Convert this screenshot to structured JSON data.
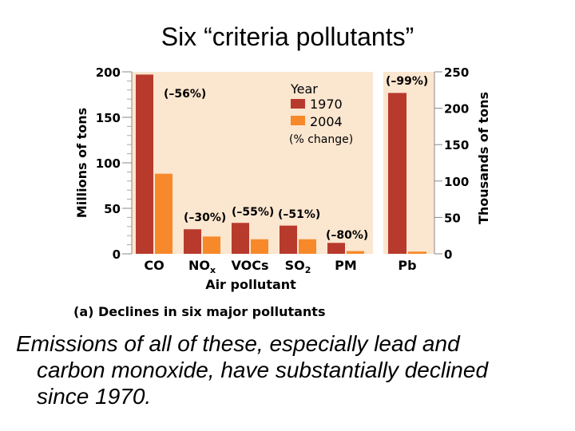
{
  "slide": {
    "title": "Six “criteria pollutants”",
    "caption_lines": [
      "Emissions of all of these, especially lead and",
      "carbon monoxide, have substantially declined",
      "since 1970."
    ]
  },
  "chart_data": {
    "type": "bar",
    "subtitle": "(a) Declines in six major pollutants",
    "xlabel": "Air pollutant",
    "legend": {
      "title": "Year",
      "entries": [
        "1970",
        "2004"
      ],
      "note": "(% change)",
      "placement": "top-right"
    },
    "colors": {
      "1970": "#b83a2d",
      "2004": "#f7892a",
      "plot_bg": "#fbe6cf"
    },
    "left_panel": {
      "ylabel": "Millions of tons",
      "ylim": [
        0,
        200
      ],
      "yticks": [
        "0",
        "50",
        "100",
        "150",
        "200"
      ],
      "categories": [
        {
          "base": "CO",
          "sub": ""
        },
        {
          "base": "NO",
          "sub": "x"
        },
        {
          "base": "VOCs",
          "sub": ""
        },
        {
          "base": "SO",
          "sub": "2"
        },
        {
          "base": "PM",
          "sub": ""
        }
      ],
      "series": [
        {
          "name": "1970",
          "values": [
            197,
            27,
            34,
            31,
            12
          ]
        },
        {
          "name": "2004",
          "values": [
            88,
            19,
            16,
            16,
            3
          ]
        }
      ],
      "changes": [
        "(–56%)",
        "(–30%)",
        "(–55%)",
        "(–51%)",
        "(–80%)"
      ]
    },
    "right_panel": {
      "ylabel": "Thousands of tons",
      "ylim": [
        0,
        250
      ],
      "yticks": [
        "0",
        "50",
        "100",
        "150",
        "200",
        "250"
      ],
      "categories": [
        {
          "base": "Pb",
          "sub": ""
        }
      ],
      "series": [
        {
          "name": "1970",
          "values": [
            221
          ]
        },
        {
          "name": "2004",
          "values": [
            3
          ]
        }
      ],
      "changes": [
        "(–99%)"
      ]
    }
  }
}
